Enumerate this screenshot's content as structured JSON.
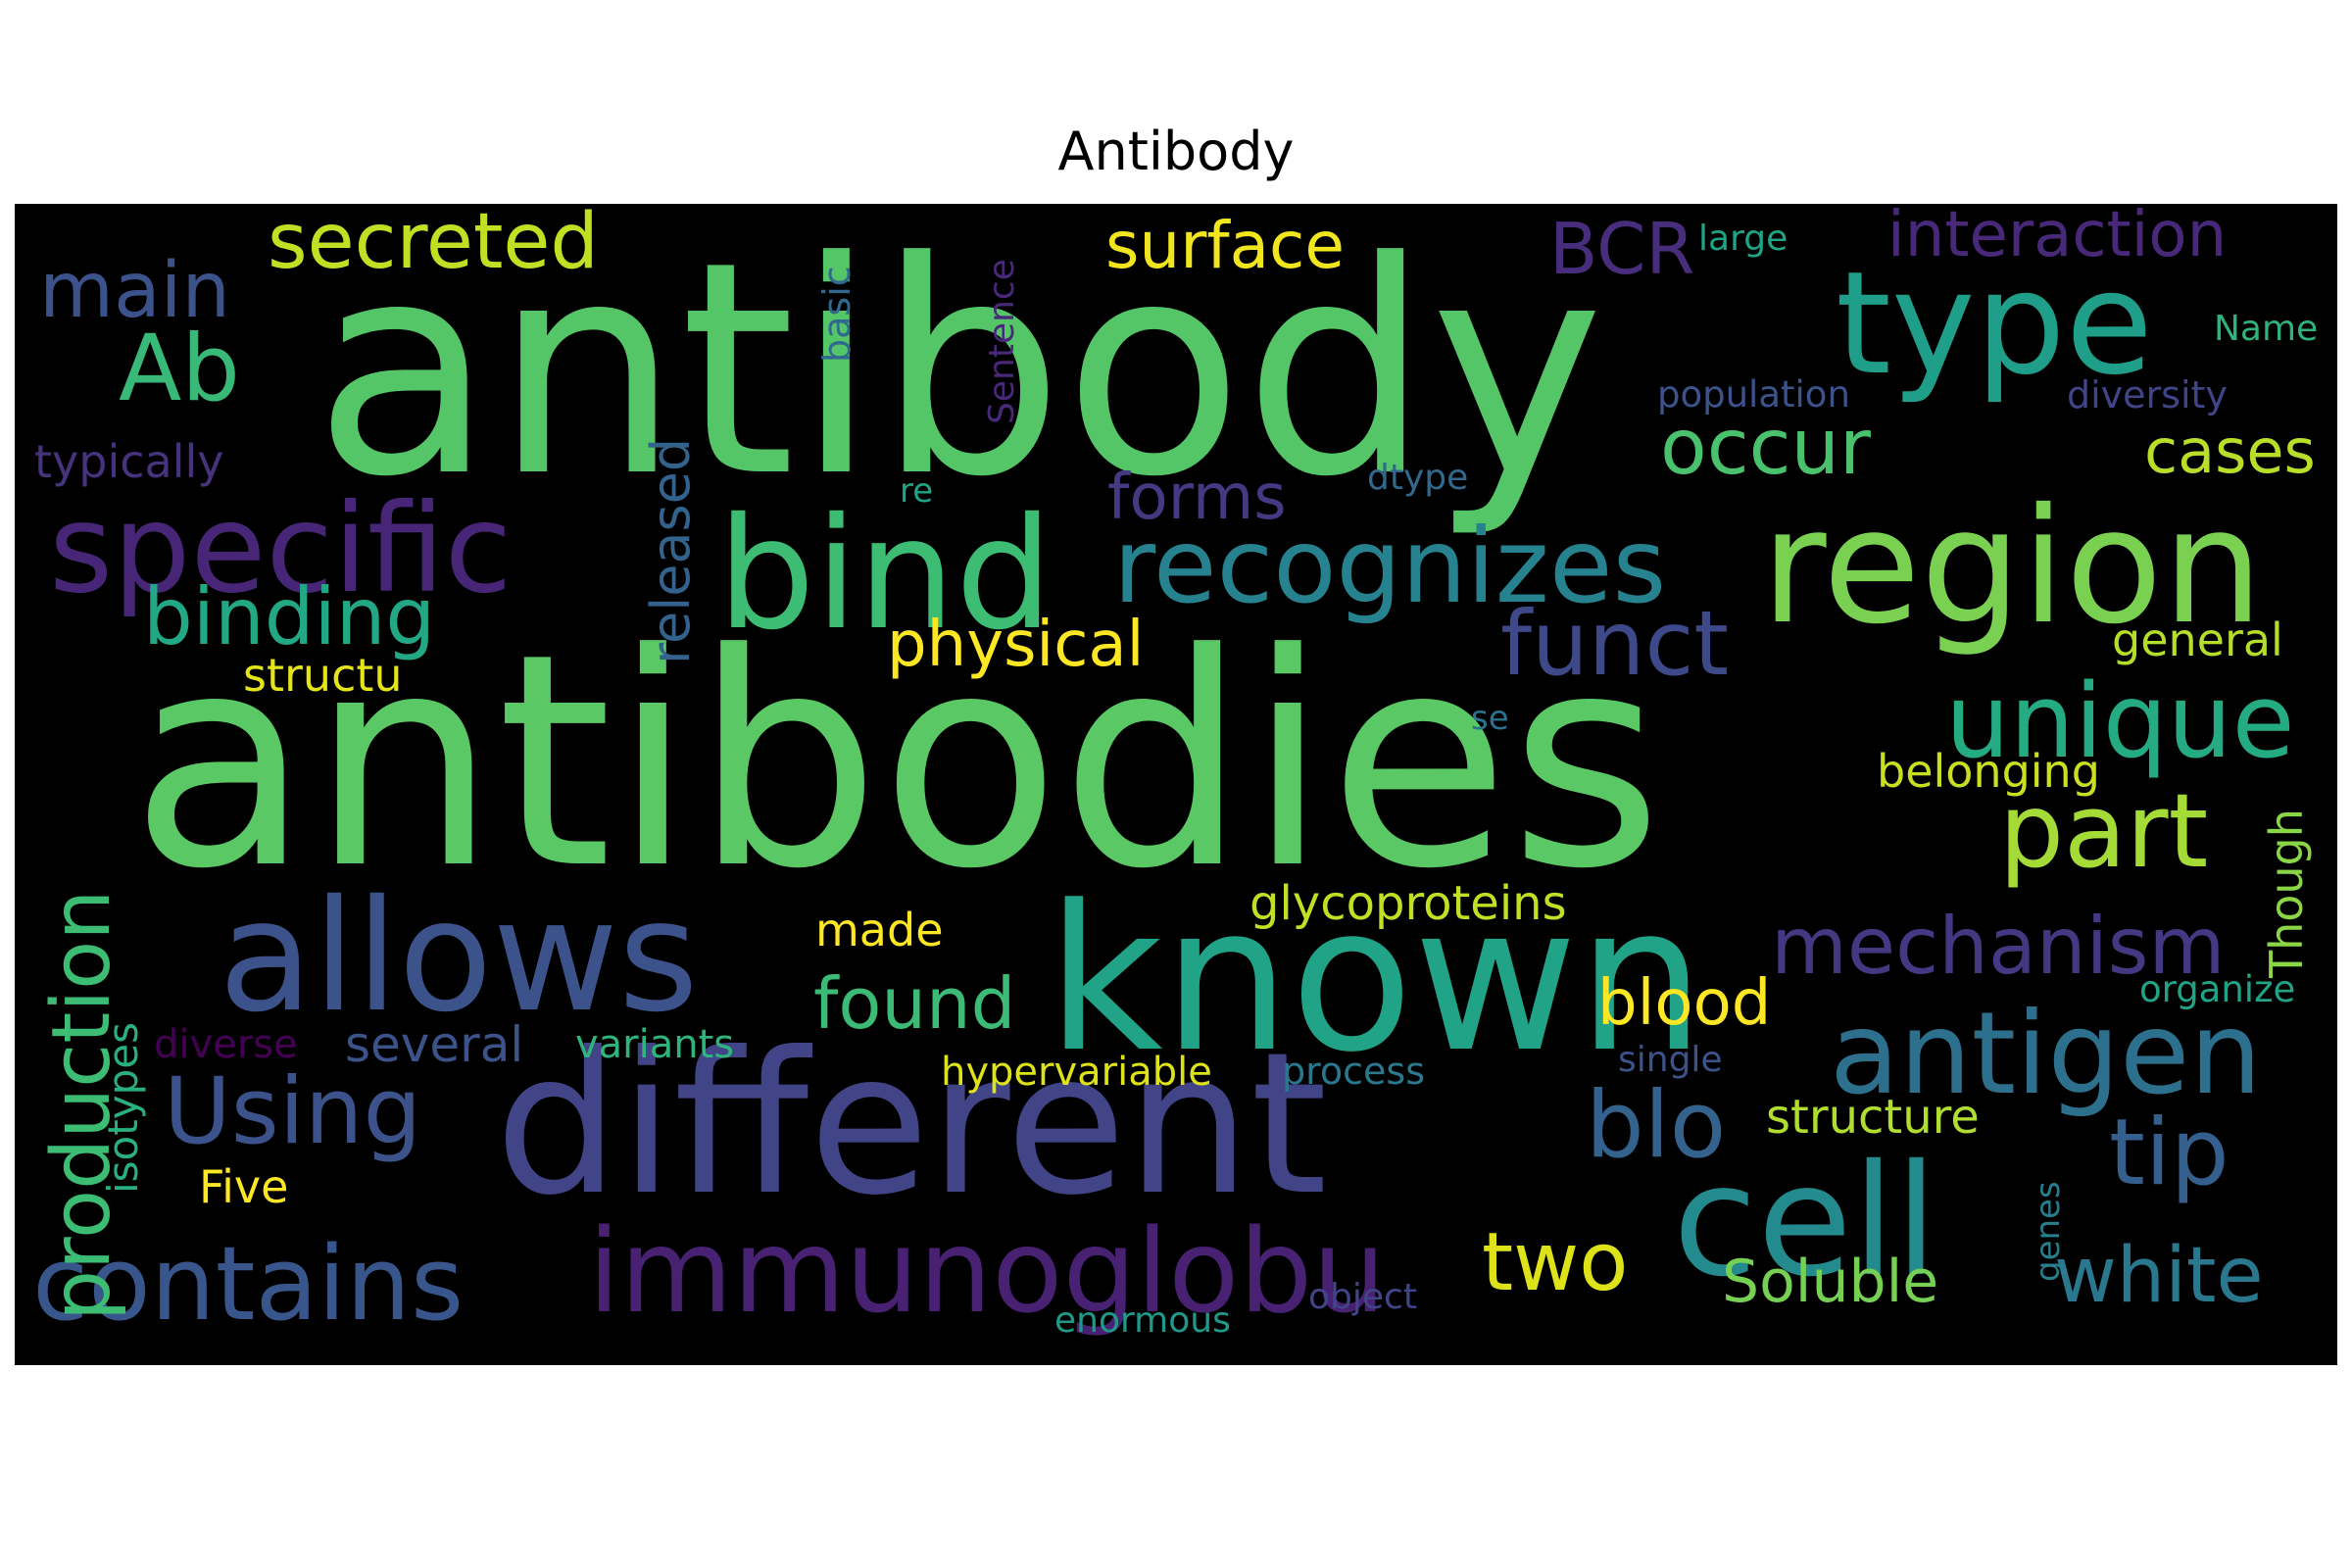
{
  "title": "Antibody",
  "colors": {
    "background": "#000000",
    "title": "#000000"
  },
  "words": [
    {
      "text": "antibody",
      "color": "#55c667"
    },
    {
      "text": "antibodies",
      "color": "#5ac864"
    },
    {
      "text": "different",
      "color": "#414487"
    },
    {
      "text": "known",
      "color": "#20a386"
    },
    {
      "text": "region",
      "color": "#7ad151"
    },
    {
      "text": "allows",
      "color": "#3b528b"
    },
    {
      "text": "bind",
      "color": "#3dbc74"
    },
    {
      "text": "type",
      "color": "#1f9e89"
    },
    {
      "text": "cell",
      "color": "#238a8d"
    },
    {
      "text": "specific",
      "color": "#482677"
    },
    {
      "text": "recognizes",
      "color": "#26828e"
    },
    {
      "text": "immunoglobu",
      "color": "#482173"
    },
    {
      "text": "antigen",
      "color": "#2d708e"
    },
    {
      "text": "contains",
      "color": "#39568c"
    },
    {
      "text": "Using",
      "color": "#3b528b"
    },
    {
      "text": "unique",
      "color": "#25ab82"
    },
    {
      "text": "part",
      "color": "#a5db36"
    },
    {
      "text": "mechanism",
      "color": "#453781"
    },
    {
      "text": "white",
      "color": "#2a788e"
    },
    {
      "text": "tip",
      "color": "#355f8d"
    },
    {
      "text": "blo",
      "color": "#33638d"
    },
    {
      "text": "two",
      "color": "#dde318"
    },
    {
      "text": "funct",
      "color": "#3e4989"
    },
    {
      "text": "Ab",
      "color": "#38b977"
    },
    {
      "text": "binding",
      "color": "#22a884"
    },
    {
      "text": "production",
      "color": "#3dbc74"
    },
    {
      "text": "main",
      "color": "#3b528b"
    },
    {
      "text": "secreted",
      "color": "#c2df23"
    },
    {
      "text": "surface",
      "color": "#f1e51d"
    },
    {
      "text": "BCR",
      "color": "#472d7b"
    },
    {
      "text": "interaction",
      "color": "#482878"
    },
    {
      "text": "occur",
      "color": "#4ac16d"
    },
    {
      "text": "cases",
      "color": "#b8de29"
    },
    {
      "text": "forms",
      "color": "#443983"
    },
    {
      "text": "physical",
      "color": "#fde725"
    },
    {
      "text": "released",
      "color": "#33638d"
    },
    {
      "text": "found",
      "color": "#3bbb75"
    },
    {
      "text": "blood",
      "color": "#fde725"
    },
    {
      "text": "glycoproteins",
      "color": "#c2df23"
    },
    {
      "text": "Soluble",
      "color": "#75d054"
    },
    {
      "text": "structure",
      "color": "#b0dd2f"
    },
    {
      "text": "several",
      "color": "#3b528b"
    },
    {
      "text": "variants",
      "color": "#2fb47c"
    },
    {
      "text": "made",
      "color": "#fde725"
    },
    {
      "text": "hypervariable",
      "color": "#dde318"
    },
    {
      "text": "process",
      "color": "#2a788e"
    },
    {
      "text": "isotypes",
      "color": "#2ab07f"
    },
    {
      "text": "diverse",
      "color": "#440154"
    },
    {
      "text": "Five",
      "color": "#fde725"
    },
    {
      "text": "structu",
      "color": "#e5e419"
    },
    {
      "text": "general",
      "color": "#b5de2b"
    },
    {
      "text": "belonging",
      "color": "#c8e020"
    },
    {
      "text": "Though",
      "color": "#8bd646"
    },
    {
      "text": "organize",
      "color": "#20a386"
    },
    {
      "text": "single",
      "color": "#3b528b"
    },
    {
      "text": "genes",
      "color": "#277f8e"
    },
    {
      "text": "object",
      "color": "#414487"
    },
    {
      "text": "enormous",
      "color": "#1f9a8a"
    },
    {
      "text": "large",
      "color": "#20a486"
    },
    {
      "text": "Name",
      "color": "#2eb37c"
    },
    {
      "text": "population",
      "color": "#3b528b"
    },
    {
      "text": "diversity",
      "color": "#414487"
    },
    {
      "text": "typically",
      "color": "#46337e"
    },
    {
      "text": "basic",
      "color": "#31688e"
    },
    {
      "text": "Sentence",
      "color": "#482878"
    },
    {
      "text": "dtype",
      "color": "#31688e"
    },
    {
      "text": "re",
      "color": "#20a386"
    },
    {
      "text": "se",
      "color": "#2c728e"
    }
  ]
}
